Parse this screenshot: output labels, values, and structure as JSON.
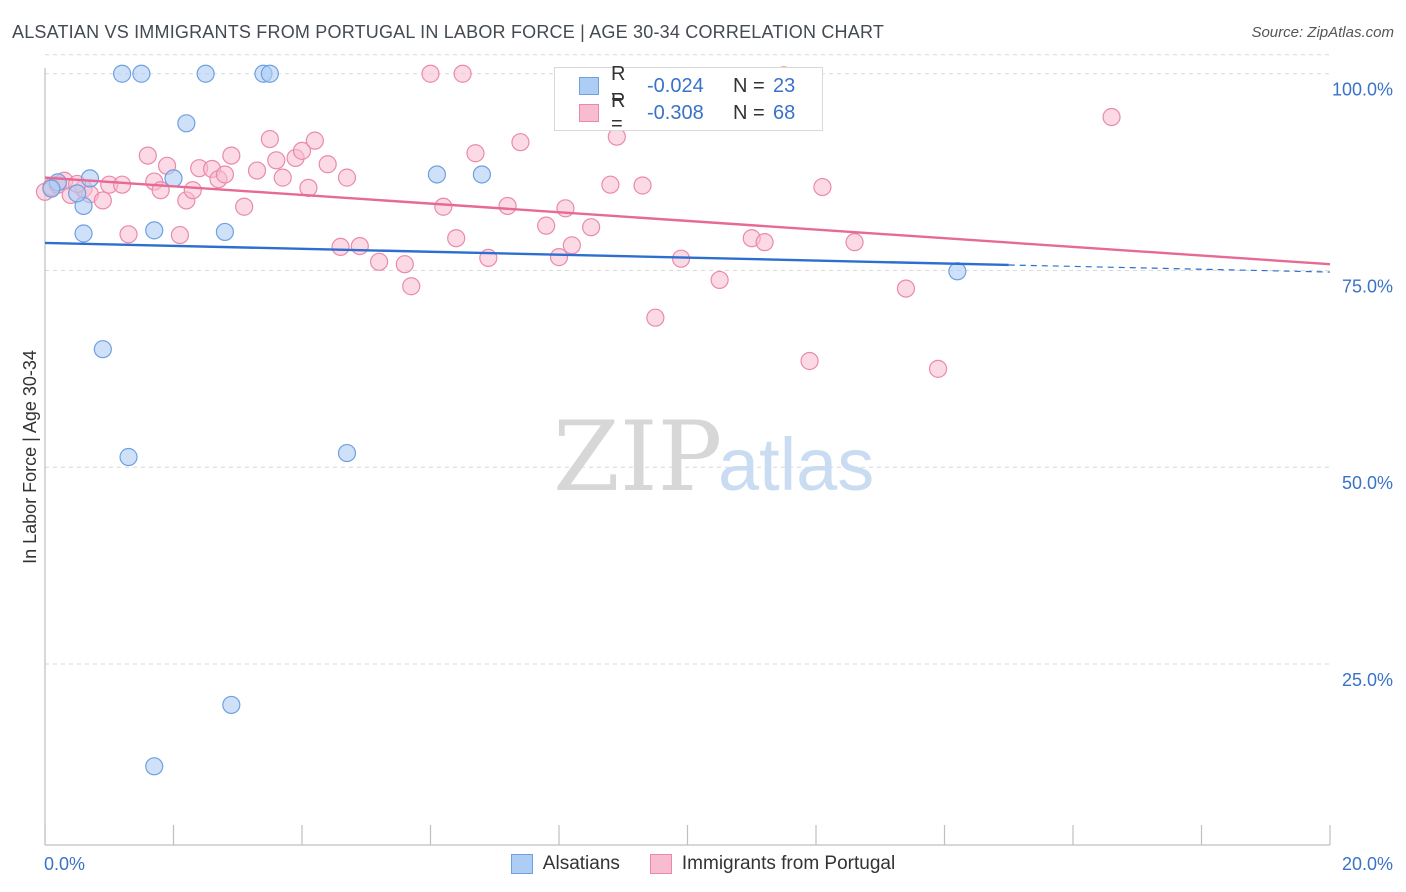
{
  "title": "ALSATIAN VS IMMIGRANTS FROM PORTUGAL IN LABOR FORCE | AGE 30-34 CORRELATION CHART",
  "source": "Source: ZipAtlas.com",
  "watermark": {
    "zip": "ZIP",
    "atlas": "atlas"
  },
  "colors": {
    "blue_fill": "#aecdf5",
    "blue_stroke": "#6fa0e0",
    "blue_line": "#2d6fd0",
    "pink_fill": "#f8bcd0",
    "pink_stroke": "#ea8aab",
    "pink_line": "#e66a93",
    "grid": "#d9d9d9",
    "tick_label": "#3a72c8"
  },
  "legend": {
    "rows": [
      {
        "r_label": "R =",
        "r_value": "-0.024",
        "n_label": "N =",
        "n_value": "23"
      },
      {
        "r_label": "R =",
        "r_value": "-0.308",
        "n_label": "N =",
        "n_value": "68"
      }
    ]
  },
  "bottom_legend": {
    "series1": "Alsatians",
    "series2": "Immigrants from Portugal"
  },
  "chart_data": {
    "type": "scatter",
    "title": "ALSATIAN VS IMMIGRANTS FROM PORTUGAL IN LABOR FORCE | AGE 30-34 CORRELATION CHART",
    "xlabel": "",
    "ylabel": "In Labor Force | Age 30-34",
    "xlim": [
      0,
      20
    ],
    "ylim": [
      2,
      102
    ],
    "x_tick_labels": [
      "0.0%",
      "20.0%"
    ],
    "y_ticks": [
      25,
      50,
      75,
      100
    ],
    "y_tick_labels": [
      "25.0%",
      "50.0%",
      "75.0%",
      "100.0%"
    ],
    "grid": true,
    "series": [
      {
        "name": "Alsatians",
        "points": [
          [
            0.2,
            86.2
          ],
          [
            0.6,
            83.2
          ],
          [
            0.6,
            79.7
          ],
          [
            0.7,
            86.7
          ],
          [
            0.9,
            65.0
          ],
          [
            1.3,
            51.3
          ],
          [
            1.2,
            100.0
          ],
          [
            1.5,
            100.0
          ],
          [
            1.7,
            80.1
          ],
          [
            1.7,
            12.0
          ],
          [
            2.0,
            86.7
          ],
          [
            2.2,
            93.7
          ],
          [
            2.5,
            100.0
          ],
          [
            2.8,
            79.9
          ],
          [
            2.9,
            19.8
          ],
          [
            3.4,
            100.0
          ],
          [
            3.5,
            100.0
          ],
          [
            4.7,
            51.8
          ],
          [
            6.1,
            87.2
          ],
          [
            6.8,
            87.2
          ],
          [
            14.2,
            74.9
          ],
          [
            0.1,
            85.4
          ],
          [
            0.5,
            84.8
          ]
        ],
        "trend": {
          "x": [
            0,
            15
          ],
          "y": [
            78.5,
            75.7
          ],
          "dashed_to": [
            20,
            74.8
          ]
        }
      },
      {
        "name": "Immigrants from Portugal",
        "points": [
          [
            0.0,
            85.0
          ],
          [
            0.1,
            85.6
          ],
          [
            0.2,
            85.9
          ],
          [
            0.4,
            84.6
          ],
          [
            0.6,
            85.4
          ],
          [
            0.7,
            84.7
          ],
          [
            0.9,
            83.9
          ],
          [
            1.0,
            85.9
          ],
          [
            1.2,
            85.9
          ],
          [
            1.3,
            79.6
          ],
          [
            1.6,
            89.6
          ],
          [
            1.7,
            86.3
          ],
          [
            1.8,
            85.2
          ],
          [
            1.9,
            88.3
          ],
          [
            2.1,
            79.5
          ],
          [
            2.2,
            83.9
          ],
          [
            2.3,
            85.2
          ],
          [
            2.4,
            88.0
          ],
          [
            2.6,
            87.9
          ],
          [
            2.7,
            86.6
          ],
          [
            2.8,
            87.2
          ],
          [
            2.9,
            89.6
          ],
          [
            3.1,
            83.1
          ],
          [
            3.3,
            87.7
          ],
          [
            3.5,
            91.7
          ],
          [
            3.6,
            89.0
          ],
          [
            3.7,
            86.8
          ],
          [
            3.9,
            89.3
          ],
          [
            4.0,
            90.2
          ],
          [
            4.1,
            85.5
          ],
          [
            4.2,
            91.5
          ],
          [
            4.4,
            88.5
          ],
          [
            4.6,
            78.0
          ],
          [
            4.7,
            86.8
          ],
          [
            4.9,
            78.1
          ],
          [
            5.2,
            76.1
          ],
          [
            5.6,
            75.8
          ],
          [
            5.7,
            73.0
          ],
          [
            6.0,
            100.0
          ],
          [
            6.2,
            83.1
          ],
          [
            6.4,
            79.1
          ],
          [
            6.5,
            100.0
          ],
          [
            6.7,
            89.9
          ],
          [
            6.9,
            76.6
          ],
          [
            7.2,
            83.2
          ],
          [
            7.4,
            91.3
          ],
          [
            7.8,
            80.7
          ],
          [
            8.0,
            76.7
          ],
          [
            8.1,
            82.9
          ],
          [
            8.2,
            78.2
          ],
          [
            8.5,
            80.5
          ],
          [
            8.8,
            85.9
          ],
          [
            8.9,
            92.0
          ],
          [
            9.3,
            85.8
          ],
          [
            9.5,
            69.0
          ],
          [
            9.9,
            76.5
          ],
          [
            10.5,
            73.8
          ],
          [
            11.0,
            79.1
          ],
          [
            11.2,
            78.6
          ],
          [
            11.5,
            99.8
          ],
          [
            11.9,
            63.5
          ],
          [
            12.1,
            85.6
          ],
          [
            12.6,
            78.6
          ],
          [
            13.4,
            72.7
          ],
          [
            13.9,
            62.5
          ],
          [
            16.6,
            94.5
          ],
          [
            0.3,
            86.4
          ],
          [
            0.5,
            86.0
          ]
        ],
        "trend": {
          "x": [
            0,
            20
          ],
          "y": [
            86.8,
            75.8
          ]
        }
      }
    ]
  }
}
